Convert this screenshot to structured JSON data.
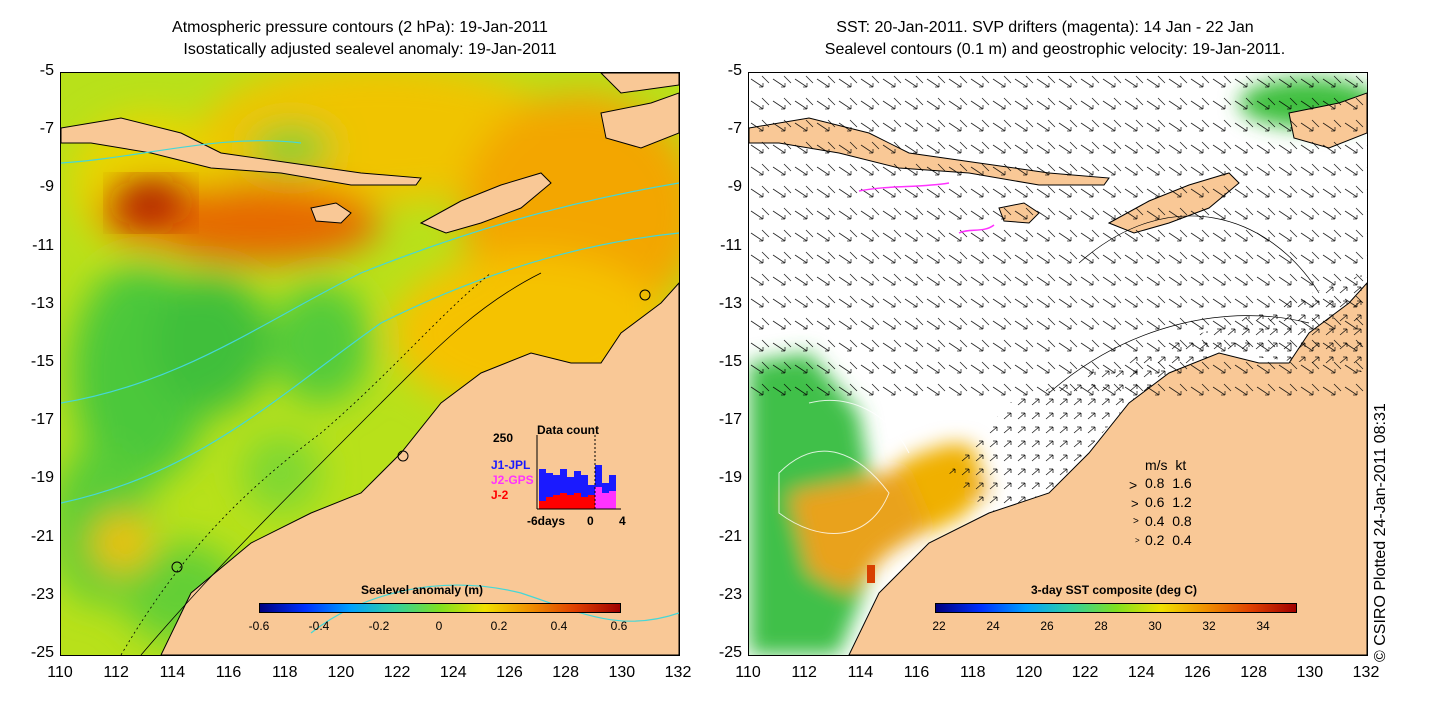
{
  "left_panel": {
    "title_line1": "Atmospheric pressure contours (2 hPa): 19-Jan-2011",
    "title_line2": "Isostatically adjusted sealevel anomaly: 19-Jan-2011",
    "colorbar": {
      "label": "Sealevel anomaly (m)",
      "ticks": [
        "-0.6",
        "-0.4",
        "-0.2",
        "0",
        "0.2",
        "0.4",
        "0.6"
      ]
    },
    "data_count": {
      "title": "Data count",
      "ymax": "250",
      "series": [
        "J1-JPL",
        "J2-GPS",
        "J-2"
      ],
      "series_colors": [
        "#1a1aff",
        "#ff33ff",
        "#ff0000"
      ],
      "x_labels": [
        "-6days",
        "0",
        "4"
      ]
    }
  },
  "right_panel": {
    "title_line1": "SST: 20-Jan-2011. SVP drifters (magenta): 14 Jan - 22 Jan",
    "title_line2": "Sealevel contours (0.1 m) and geostrophic velocity: 19-Jan-2011.",
    "colorbar": {
      "label": "3-day SST composite (deg C)",
      "ticks": [
        "22",
        "24",
        "26",
        "28",
        "30",
        "32",
        "34"
      ]
    },
    "velocity_legend": {
      "header": "m/s  kt",
      "rows": [
        "0.8  1.6",
        "0.6  1.2",
        "0.4  0.8",
        "0.2  0.4"
      ]
    }
  },
  "axes": {
    "y_ticks": [
      "-5",
      "-7",
      "-9",
      "-11",
      "-13",
      "-15",
      "-17",
      "-19",
      "-21",
      "-23",
      "-25"
    ],
    "x_ticks": [
      "110",
      "112",
      "114",
      "116",
      "118",
      "120",
      "122",
      "124",
      "126",
      "128",
      "130",
      "132"
    ]
  },
  "credit": "© CSIRO Plotted 24-Jan-2011 08:31",
  "colors": {
    "land": "#f9c896",
    "contour": "#45d7d7",
    "sla_green": "#4ccb3a",
    "sla_yellow": "#f5d800",
    "sla_orange": "#f39a00",
    "sla_red": "#a51a00"
  }
}
